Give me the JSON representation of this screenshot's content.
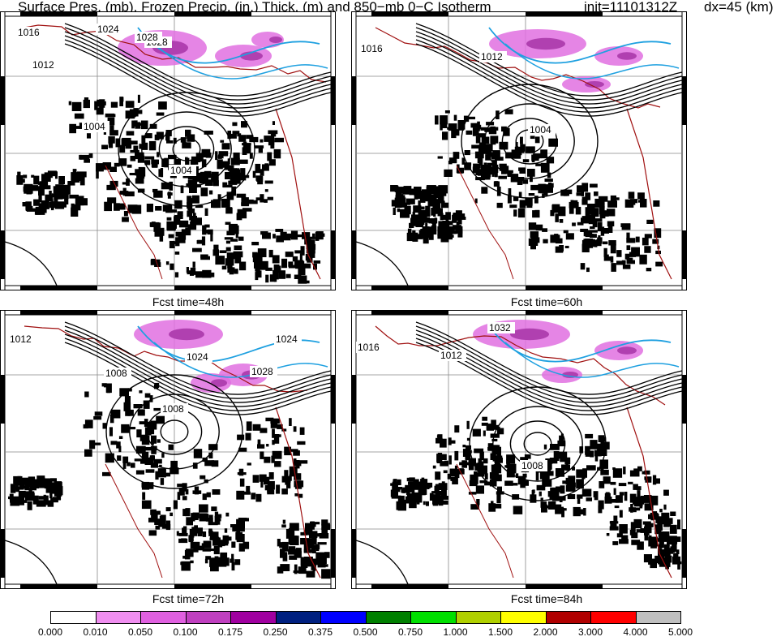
{
  "header": {
    "title": "Surface Pres. (mb), Frozen Precip. (in.) Thick. (m) and 850−mb 0−C Isotherm",
    "init": "init=11101312Z",
    "dx": "dx=45 (km)"
  },
  "panels": [
    {
      "caption": "Fcst time=48h",
      "contour_labels": [
        "1016",
        "1028",
        "1024",
        "1028",
        "1012",
        "1004",
        "1004"
      ]
    },
    {
      "caption": "Fcst time=60h",
      "contour_labels": [
        "1016",
        "1012",
        "1004"
      ]
    },
    {
      "caption": "Fcst time=72h",
      "contour_labels": [
        "1012",
        "1024",
        "1028",
        "1024",
        "1008",
        "1008"
      ]
    },
    {
      "caption": "Fcst time=84h",
      "contour_labels": [
        "1016",
        "1012",
        "1032",
        "1008"
      ]
    }
  ],
  "colorbar": {
    "colors": [
      "#ffffff",
      "#f08ef0",
      "#e060e0",
      "#c040c0",
      "#a000a0",
      "#002080",
      "#0000ff",
      "#008000",
      "#00e000",
      "#b0d000",
      "#ffff00",
      "#b00000",
      "#ff0000",
      "#c0c0c0"
    ],
    "ticks": [
      "0.000",
      "0.010",
      "0.050",
      "0.100",
      "0.175",
      "0.250",
      "0.375",
      "0.500",
      "0.750",
      "1.000",
      "1.500",
      "2.000",
      "3.000",
      "4.000",
      "5.000"
    ]
  },
  "map_colors": {
    "isobar": "#000000",
    "isotherm": "#1ea0e0",
    "borders": "#a01010",
    "snow": "#000000",
    "frozen_precip": "#e070e0"
  }
}
